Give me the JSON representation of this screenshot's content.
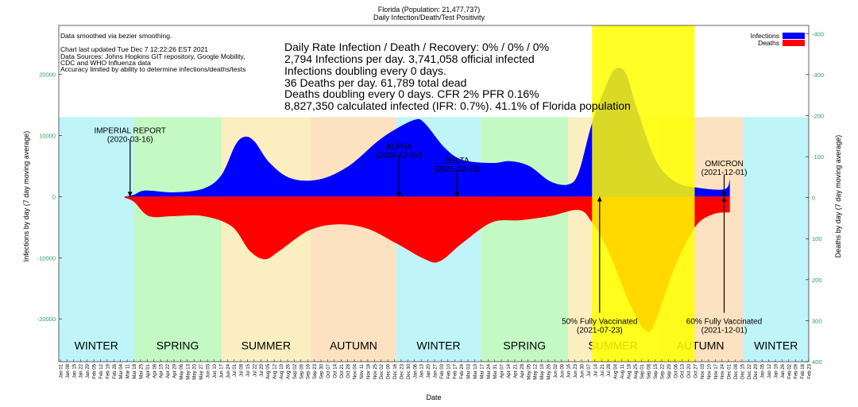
{
  "header": {
    "title": "Florida (Population: 21,477,737)",
    "subtitle": "Daily Infection/Death/Test Positivity"
  },
  "notes": [
    "Data smoothed via bezier smoothing.",
    "",
    "Chart last updated Tue Dec  7 12:22:26 EST 2021",
    "Data Sources: Johns Hopkins GIT repository, Google Mobility,",
    "CDC and WHO Influenza data",
    "Accuracy limited by ability to determine infections/deaths/tests"
  ],
  "stats": [
    "Daily Rate Infection / Death / Recovery: 0% / 0% / 0%",
    "2,794 Infections per day.  3,741,058 official infected",
    "Infections doubling every 0 days.",
    "36 Deaths per day.  61,789 total dead",
    "Deaths doubling every 0 days.  CFR 2%  PFR 0.16%",
    "8,827,350 calculated infected (IFR: 0.7%).  41.1% of Florida population"
  ],
  "chart_data": {
    "type": "area",
    "xlabel": "Date",
    "ylabel_left": "Infections by day (7 day moving average)",
    "ylabel_right": "Deaths by day (7 day moving average)",
    "ylim_left": [
      -27000,
      28000
    ],
    "ylim_right": [
      400,
      -420
    ],
    "left_ticks": [
      20000,
      10000,
      0,
      -10000,
      -20000
    ],
    "left_tick_labels": [
      "20000",
      "10000",
      "0",
      "-10000",
      "-20000"
    ],
    "right_ticks": [
      -400,
      -300,
      -200,
      -100,
      0,
      100,
      200,
      300,
      400
    ],
    "right_tick_labels": [
      "-400",
      "-300",
      "-200",
      "-100",
      "0",
      "100",
      "200",
      "300",
      "400"
    ],
    "x_range": [
      "2020-01-01",
      "2022-02-28"
    ],
    "x_tick_labels": [
      "Jan 01",
      "Jan 08",
      "Jan 15",
      "Jan 22",
      "Jan 29",
      "Feb 05",
      "Feb 12",
      "Feb 19",
      "Feb 26",
      "Mar 04",
      "Mar 11",
      "Mar 18",
      "Mar 25",
      "Apr 01",
      "Apr 08",
      "Apr 15",
      "Apr 22",
      "Apr 29",
      "May 06",
      "May 13",
      "May 20",
      "May 27",
      "Jun 03",
      "Jun 10",
      "Jun 17",
      "Jun 24",
      "Jul 01",
      "Jul 08",
      "Jul 15",
      "Jul 22",
      "Jul 29",
      "Aug 05",
      "Aug 12",
      "Aug 19",
      "Aug 26",
      "Sep 02",
      "Sep 09",
      "Sep 16",
      "Sep 23",
      "Sep 30",
      "Oct 07",
      "Oct 14",
      "Oct 21",
      "Oct 28",
      "Nov 04",
      "Nov 11",
      "Nov 18",
      "Nov 25",
      "Dec 02",
      "Dec 09",
      "Dec 16",
      "Dec 23",
      "Dec 30",
      "Jan 06",
      "Jan 13",
      "Jan 20",
      "Jan 27",
      "Feb 03",
      "Feb 10",
      "Feb 17",
      "Feb 24",
      "Mar 03",
      "Mar 10",
      "Mar 17",
      "Mar 24",
      "Mar 31",
      "Apr 07",
      "Apr 14",
      "Apr 21",
      "Apr 28",
      "May 05",
      "May 12",
      "May 19",
      "May 26",
      "Jun 02",
      "Jun 09",
      "Jun 16",
      "Jun 23",
      "Jun 30",
      "Jul 07",
      "Jul 14",
      "Jul 21",
      "Jul 28",
      "Aug 04",
      "Aug 11",
      "Aug 18",
      "Aug 25",
      "Sep 01",
      "Sep 08",
      "Sep 15",
      "Sep 22",
      "Sep 29",
      "Oct 06",
      "Oct 13",
      "Oct 20",
      "Oct 27",
      "Nov 03",
      "Nov 10",
      "Nov 17",
      "Nov 24",
      "Dec 01",
      "Dec 08",
      "Dec 15",
      "Dec 22",
      "Dec 29",
      "Jan 05",
      "Jan 12",
      "Jan 19",
      "Jan 26",
      "Feb 02",
      "Feb 09",
      "Feb 16",
      "Feb 23"
    ],
    "legend": {
      "position": "top-right",
      "entries": [
        {
          "name": "Infections",
          "color": "#0000ff"
        },
        {
          "name": "Deaths",
          "color": "#ff0000"
        }
      ]
    },
    "season_band": {
      "top": 13000,
      "bottom": -27000
    },
    "seasons": [
      {
        "label": "WINTER",
        "start": "2020-01-01",
        "end": "2020-03-20",
        "color": "#bff4f9"
      },
      {
        "label": "SPRING",
        "start": "2020-03-20",
        "end": "2020-06-20",
        "color": "#c4f9c4"
      },
      {
        "label": "SUMMER",
        "start": "2020-06-20",
        "end": "2020-09-22",
        "color": "#fbeec0"
      },
      {
        "label": "AUTUMN",
        "start": "2020-09-22",
        "end": "2020-12-21",
        "color": "#fce2c0"
      },
      {
        "label": "WINTER",
        "start": "2020-12-21",
        "end": "2021-03-20",
        "color": "#bff4f9"
      },
      {
        "label": "SPRING",
        "start": "2021-03-20",
        "end": "2021-06-20",
        "color": "#c4f9c4"
      },
      {
        "label": "SUMMER",
        "start": "2021-06-20",
        "end": "2021-09-22",
        "color": "#fbeec0"
      },
      {
        "label": "AUTUMN",
        "start": "2021-09-22",
        "end": "2021-12-21",
        "color": "#fce2c0"
      },
      {
        "label": "WINTER",
        "start": "2021-12-21",
        "end": "2022-02-28",
        "color": "#bff4f9"
      }
    ],
    "highlight": {
      "start": "2021-07-15",
      "end": "2021-10-31",
      "color": "#ffff00",
      "opacity": 0.85
    },
    "infections_series": {
      "name": "Infections",
      "color": "#0000ff",
      "points": [
        [
          "2020-03-10",
          0
        ],
        [
          "2020-03-20",
          300
        ],
        [
          "2020-04-01",
          1000
        ],
        [
          "2020-05-01",
          700
        ],
        [
          "2020-06-01",
          1300
        ],
        [
          "2020-06-20",
          3500
        ],
        [
          "2020-07-05",
          8500
        ],
        [
          "2020-07-15",
          9800
        ],
        [
          "2020-07-25",
          9000
        ],
        [
          "2020-08-10",
          5500
        ],
        [
          "2020-09-01",
          3000
        ],
        [
          "2020-10-01",
          2800
        ],
        [
          "2020-11-01",
          5000
        ],
        [
          "2020-12-01",
          9000
        ],
        [
          "2020-12-20",
          11000
        ],
        [
          "2021-01-10",
          12600
        ],
        [
          "2021-01-20",
          12000
        ],
        [
          "2021-02-10",
          8000
        ],
        [
          "2021-03-01",
          6000
        ],
        [
          "2021-04-01",
          5500
        ],
        [
          "2021-04-20",
          5800
        ],
        [
          "2021-05-10",
          5000
        ],
        [
          "2021-06-01",
          2500
        ],
        [
          "2021-06-20",
          2000
        ],
        [
          "2021-07-01",
          4000
        ],
        [
          "2021-07-15",
          12000
        ],
        [
          "2021-08-01",
          19000
        ],
        [
          "2021-08-10",
          21000
        ],
        [
          "2021-08-20",
          20000
        ],
        [
          "2021-09-01",
          14000
        ],
        [
          "2021-09-20",
          6000
        ],
        [
          "2021-10-10",
          2500
        ],
        [
          "2021-11-01",
          1500
        ],
        [
          "2021-12-01",
          1200
        ],
        [
          "2021-12-07",
          2794
        ]
      ]
    },
    "deaths_series": {
      "name": "Deaths",
      "color": "#ff0000",
      "points": [
        [
          "2020-03-10",
          0
        ],
        [
          "2020-03-20",
          10
        ],
        [
          "2020-04-05",
          45
        ],
        [
          "2020-05-01",
          45
        ],
        [
          "2020-06-01",
          45
        ],
        [
          "2020-07-01",
          70
        ],
        [
          "2020-07-20",
          130
        ],
        [
          "2020-08-05",
          150
        ],
        [
          "2020-08-20",
          130
        ],
        [
          "2020-09-20",
          80
        ],
        [
          "2020-10-20",
          65
        ],
        [
          "2020-11-20",
          75
        ],
        [
          "2020-12-20",
          110
        ],
        [
          "2021-01-20",
          150
        ],
        [
          "2021-02-05",
          155
        ],
        [
          "2021-03-01",
          110
        ],
        [
          "2021-04-01",
          60
        ],
        [
          "2021-05-01",
          55
        ],
        [
          "2021-06-01",
          45
        ],
        [
          "2021-07-01",
          30
        ],
        [
          "2021-07-15",
          60
        ],
        [
          "2021-08-01",
          130
        ],
        [
          "2021-08-25",
          265
        ],
        [
          "2021-09-10",
          325
        ],
        [
          "2021-09-20",
          300
        ],
        [
          "2021-10-10",
          170
        ],
        [
          "2021-11-01",
          70
        ],
        [
          "2021-11-20",
          40
        ],
        [
          "2021-12-07",
          36
        ]
      ]
    },
    "annotations": [
      {
        "lines": [
          "IMPERIAL REPORT",
          "(2020-03-16)"
        ],
        "date": "2020-03-16",
        "text_y": 10400,
        "arrow_from": 9200,
        "arrow_to": 0
      },
      {
        "lines": [
          "ALPHA",
          "(2020-12-24)"
        ],
        "date": "2020-12-24",
        "text_y": 7800,
        "arrow_from": 6700,
        "arrow_to": 0
      },
      {
        "lines": [
          "DELTA",
          "(2021-02-23)"
        ],
        "date": "2021-02-23",
        "text_y": 5500,
        "arrow_from": 4300,
        "arrow_to": 0
      },
      {
        "lines": [
          "OMICRON",
          "(2021-12-01)"
        ],
        "date": "2021-12-01",
        "text_y": 5000,
        "arrow_from": 3600,
        "arrow_to": 0
      },
      {
        "lines": [
          "50% Fully Vaccinated",
          "(2021-07-23)"
        ],
        "date": "2021-07-23",
        "text_y": -20800,
        "arrow_from": -19000,
        "arrow_to": 0
      },
      {
        "lines": [
          "60% Fully Vaccinated",
          "(2021-12-01)"
        ],
        "date": "2021-12-01",
        "text_y": -20800,
        "arrow_from": -19000,
        "arrow_to": 0
      }
    ]
  }
}
